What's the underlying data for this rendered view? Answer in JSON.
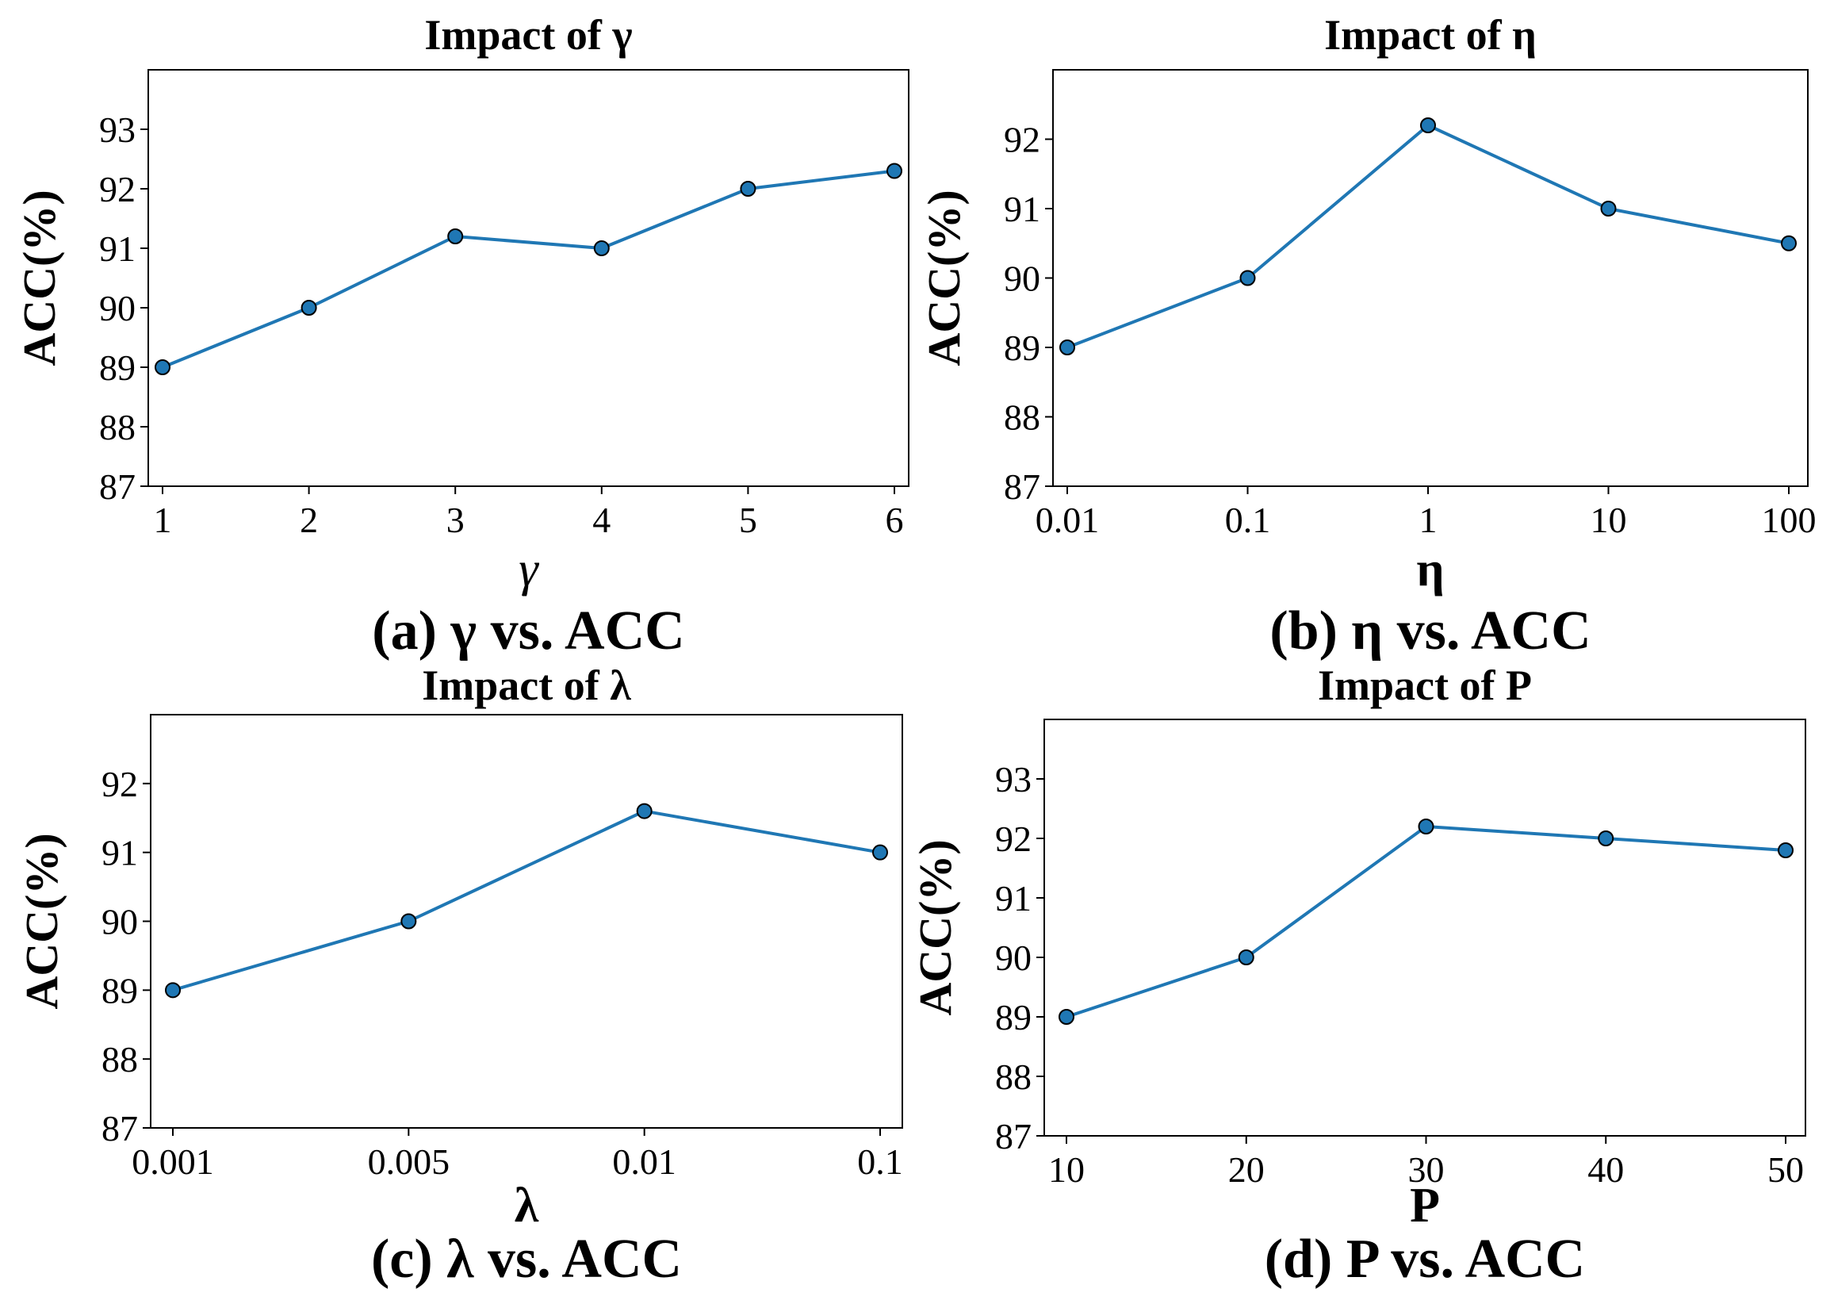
{
  "colors": {
    "line": "#1f77b4",
    "marker_edge": "#000000",
    "axis": "#000000"
  },
  "chart_data": [
    {
      "type": "line",
      "title": "Impact of γ",
      "xlabel": "γ",
      "ylabel": "ACC(%)",
      "caption": "(a) γ vs. ACC",
      "categories": [
        "1",
        "2",
        "3",
        "4",
        "5",
        "6"
      ],
      "values": [
        89.0,
        90.0,
        91.2,
        91.0,
        92.0,
        92.3
      ],
      "ylim": [
        87,
        94
      ],
      "yticks": [
        87,
        88,
        89,
        90,
        91,
        92,
        93
      ]
    },
    {
      "type": "line",
      "title": "Impact of η",
      "xlabel": "η",
      "ylabel": "ACC(%)",
      "caption": "(b) η vs. ACC",
      "categories": [
        "0.01",
        "0.1",
        "1",
        "10",
        "100"
      ],
      "values": [
        89.0,
        90.0,
        92.2,
        91.0,
        90.5
      ],
      "ylim": [
        87,
        93
      ],
      "yticks": [
        87,
        88,
        89,
        90,
        91,
        92
      ]
    },
    {
      "type": "line",
      "title": "Impact of  λ",
      "xlabel": "λ",
      "ylabel": "ACC(%)",
      "caption": "(c) λ vs. ACC",
      "categories": [
        "0.001",
        "0.005",
        "0.01",
        "0.1"
      ],
      "values": [
        89.0,
        90.0,
        91.6,
        91.0
      ],
      "ylim": [
        87,
        93
      ],
      "yticks": [
        87,
        88,
        89,
        90,
        91,
        92
      ]
    },
    {
      "type": "line",
      "title": "Impact of P",
      "xlabel": "P",
      "ylabel": "ACC(%)",
      "caption": "(d) P vs. ACC",
      "categories": [
        "10",
        "20",
        "30",
        "40",
        "50"
      ],
      "values": [
        89.0,
        90.0,
        92.2,
        92.0,
        91.8
      ],
      "ylim": [
        87,
        94
      ],
      "yticks": [
        87,
        88,
        89,
        90,
        91,
        92,
        93
      ]
    }
  ]
}
